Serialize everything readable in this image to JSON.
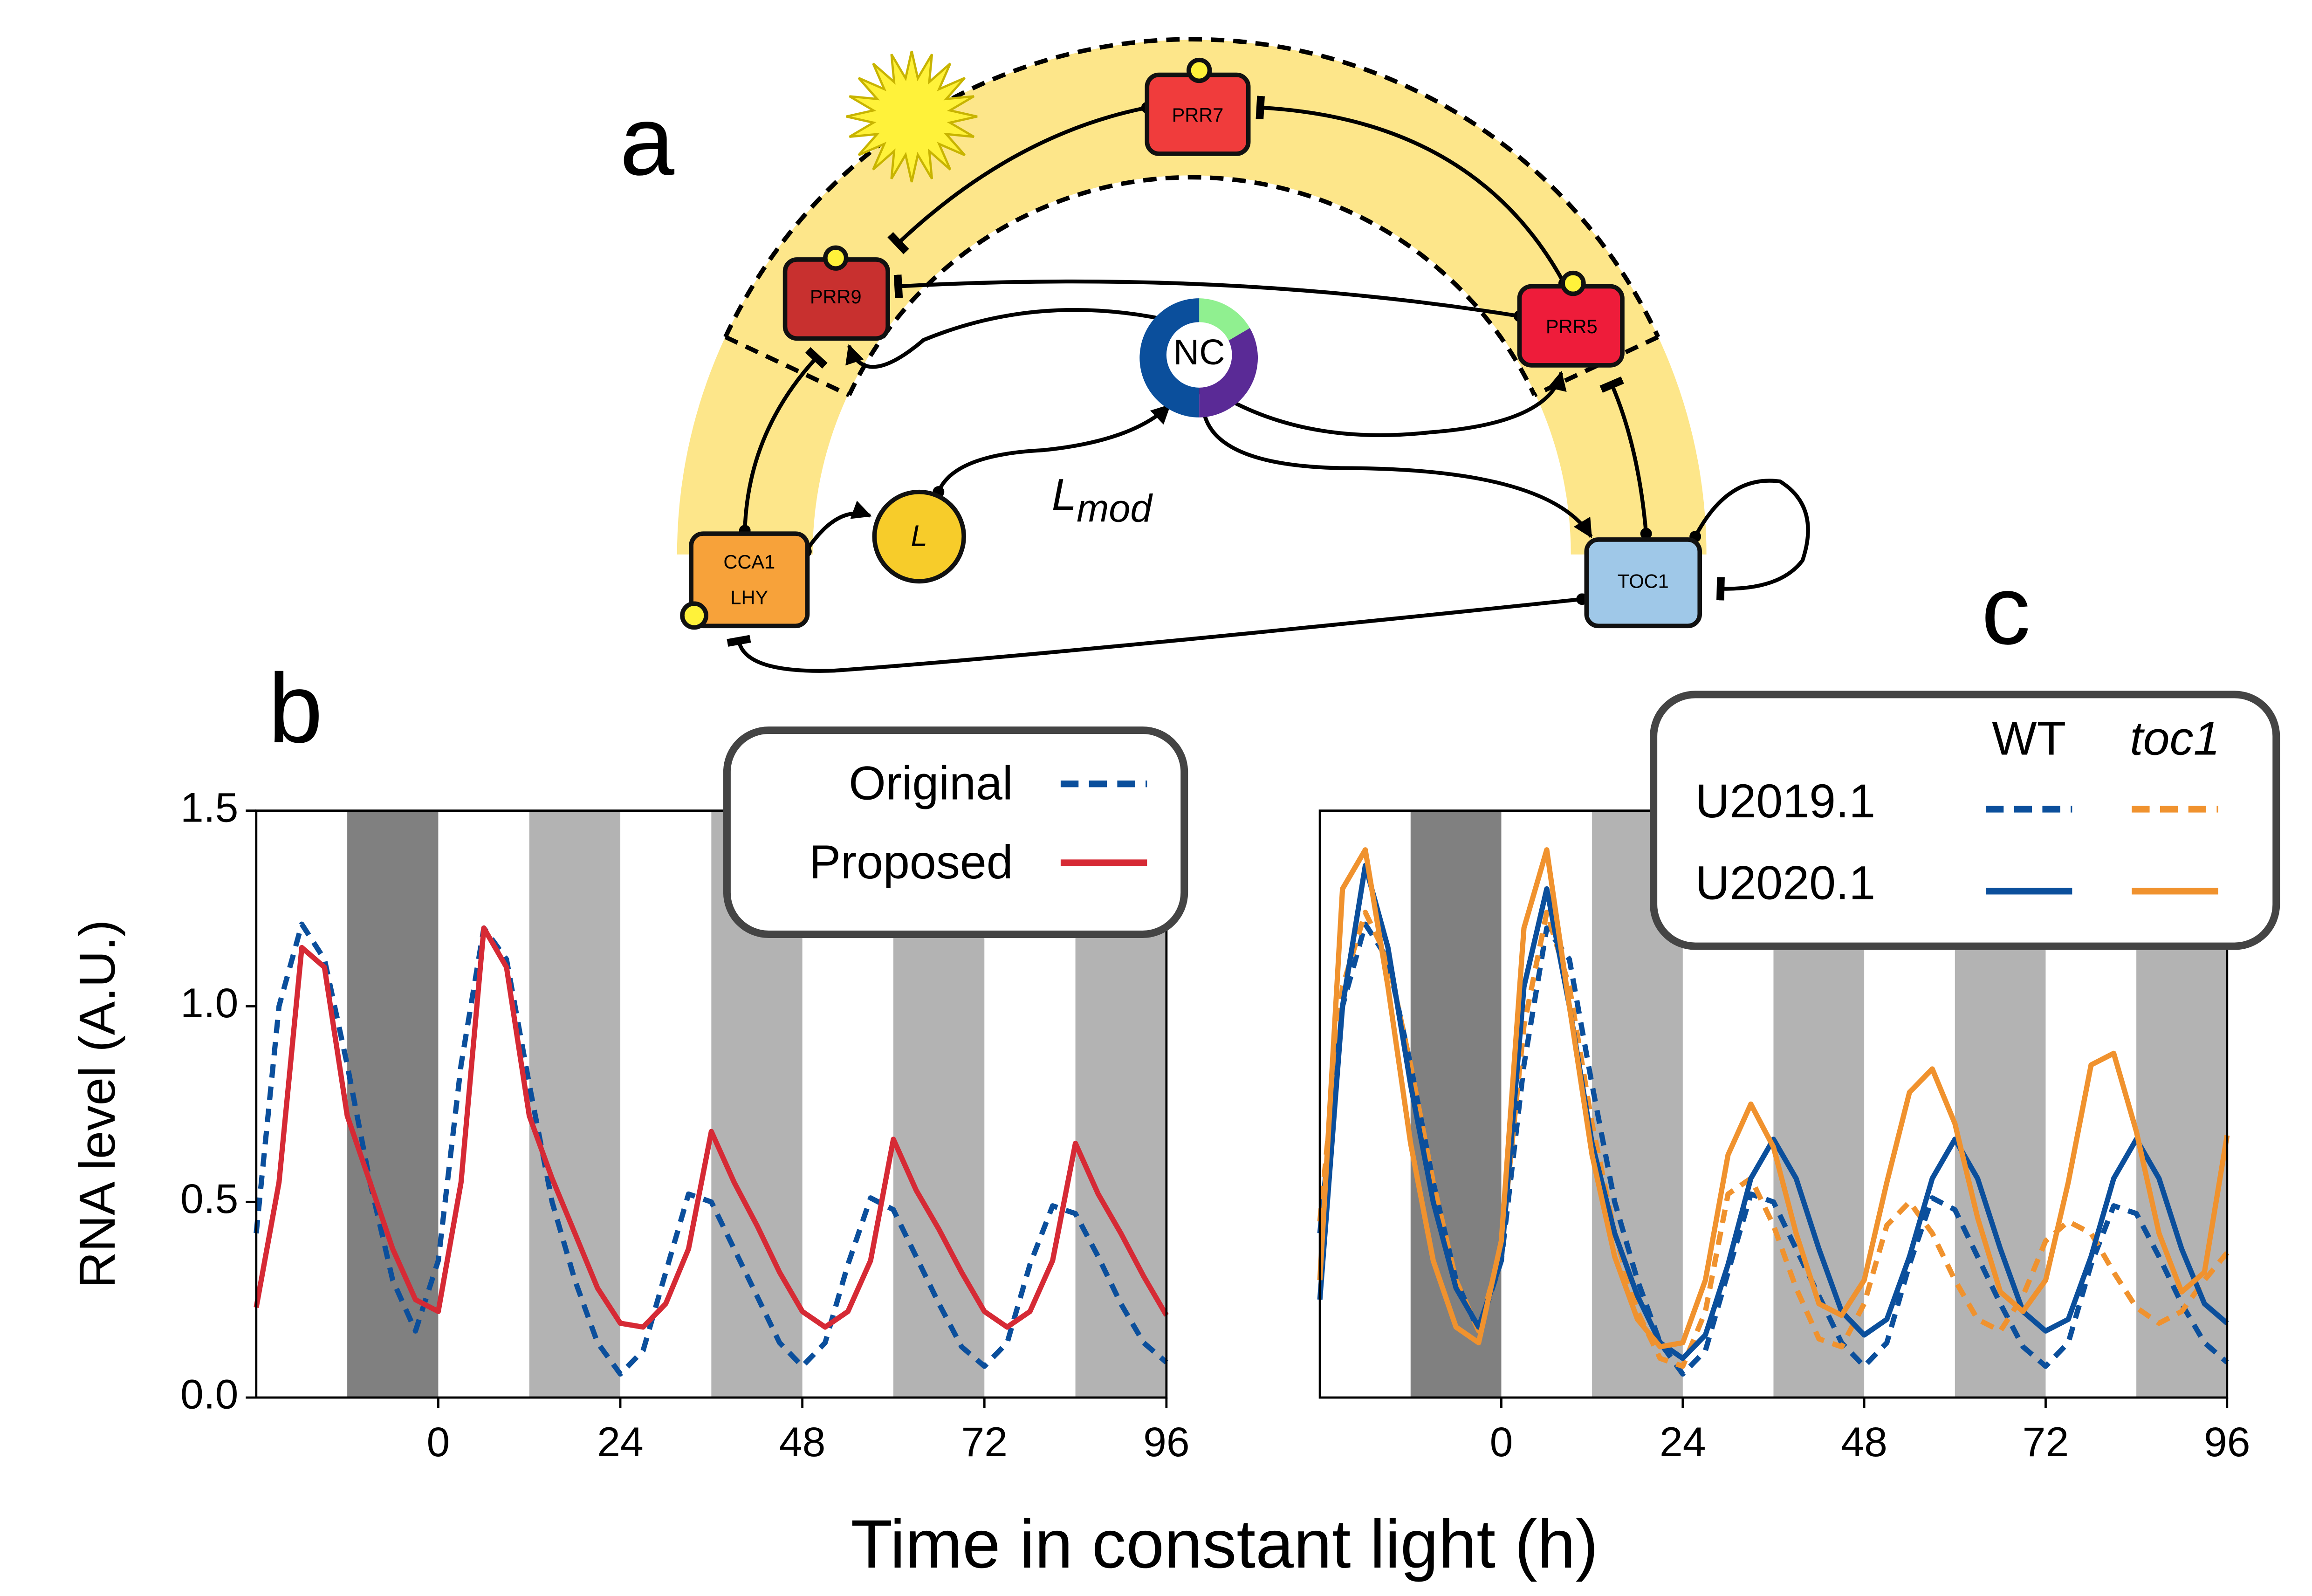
{
  "diagram": {
    "panel": "a",
    "nodes": [
      {
        "label": "PRR7"
      },
      {
        "label": "PRR9"
      },
      {
        "label": "PRR5"
      },
      {
        "label": "NC"
      },
      {
        "label": [
          "CCA1",
          "LHY"
        ]
      },
      {
        "label": "L"
      },
      {
        "label": "TOC1"
      }
    ],
    "edge_label": {
      "main": "L",
      "sub": "mod"
    }
  },
  "shared": {
    "xlabel": "Time in constant light (h)",
    "ylabel": "RNA level (A.U.)"
  },
  "chart_data": [
    {
      "type": "line",
      "panel": "b",
      "x": [
        -24,
        -21,
        -18,
        -15,
        -12,
        -9,
        -6,
        -3,
        0,
        3,
        6,
        9,
        12,
        15,
        18,
        21,
        24,
        27,
        30,
        33,
        36,
        39,
        42,
        45,
        48,
        51,
        54,
        57,
        60,
        63,
        66,
        69,
        72,
        75,
        78,
        81,
        84,
        87,
        90,
        93,
        96
      ],
      "xlim": [
        -24,
        96
      ],
      "xticks": [
        0,
        24,
        48,
        72,
        96
      ],
      "ylim": [
        0,
        1.5
      ],
      "yticks": [
        {
          "value": 0,
          "label": "0.0"
        },
        0.5,
        {
          "value": 1,
          "label": "1.0"
        },
        1.5
      ],
      "dark_intervals": [
        [
          -12,
          0
        ]
      ],
      "light_gray_intervals": [
        [
          12,
          24
        ],
        [
          36,
          48
        ],
        [
          60,
          72
        ],
        [
          84,
          96
        ]
      ],
      "legend": "upper right",
      "series": [
        {
          "name": "Original",
          "color": "#0b4f9c",
          "dashed": true,
          "values": [
            0.42,
            1.0,
            1.21,
            1.12,
            0.85,
            0.55,
            0.3,
            0.17,
            0.35,
            0.85,
            1.2,
            1.12,
            0.8,
            0.5,
            0.3,
            0.14,
            0.06,
            0.12,
            0.32,
            0.52,
            0.5,
            0.38,
            0.26,
            0.14,
            0.08,
            0.14,
            0.34,
            0.51,
            0.48,
            0.36,
            0.24,
            0.13,
            0.08,
            0.14,
            0.34,
            0.49,
            0.47,
            0.36,
            0.24,
            0.14,
            0.09
          ]
        },
        {
          "name": "Proposed",
          "color": "#d62a35",
          "dashed": false,
          "values": [
            0.23,
            0.55,
            1.15,
            1.1,
            0.72,
            0.55,
            0.38,
            0.25,
            0.22,
            0.55,
            1.2,
            1.1,
            0.72,
            0.56,
            0.42,
            0.28,
            0.19,
            0.18,
            0.24,
            0.38,
            0.68,
            0.55,
            0.44,
            0.32,
            0.22,
            0.18,
            0.22,
            0.35,
            0.66,
            0.53,
            0.43,
            0.32,
            0.22,
            0.18,
            0.22,
            0.35,
            0.65,
            0.52,
            0.42,
            0.31,
            0.21
          ]
        }
      ]
    },
    {
      "type": "line",
      "panel": "c",
      "x": [
        -24,
        -21,
        -18,
        -15,
        -12,
        -9,
        -6,
        -3,
        0,
        3,
        6,
        9,
        12,
        15,
        18,
        21,
        24,
        27,
        30,
        33,
        36,
        39,
        42,
        45,
        48,
        51,
        54,
        57,
        60,
        63,
        66,
        69,
        72,
        75,
        78,
        81,
        84,
        87,
        90,
        93,
        96
      ],
      "xlim": [
        -24,
        96
      ],
      "xticks": [
        0,
        24,
        48,
        72,
        96
      ],
      "ylim": [
        0,
        1.5
      ],
      "dark_intervals": [
        [
          -12,
          0
        ]
      ],
      "light_gray_intervals": [
        [
          12,
          24
        ],
        [
          36,
          48
        ],
        [
          60,
          72
        ],
        [
          84,
          96
        ]
      ],
      "legend": "upper right",
      "legend_rows": [
        "U2019.1",
        "U2020.1"
      ],
      "legend_columns": [
        "WT",
        "toc1"
      ],
      "series": [
        {
          "row": 0,
          "column": 0,
          "color": "#0b4f9c",
          "dashed": true,
          "values": [
            0.42,
            1.0,
            1.21,
            1.12,
            0.85,
            0.55,
            0.3,
            0.17,
            0.35,
            0.85,
            1.2,
            1.12,
            0.8,
            0.5,
            0.3,
            0.14,
            0.06,
            0.12,
            0.32,
            0.52,
            0.5,
            0.38,
            0.26,
            0.14,
            0.08,
            0.14,
            0.34,
            0.51,
            0.48,
            0.36,
            0.24,
            0.13,
            0.08,
            0.14,
            0.34,
            0.49,
            0.47,
            0.36,
            0.24,
            0.14,
            0.09
          ]
        },
        {
          "row": 0,
          "column": 1,
          "color": "#f0922e",
          "dashed": true,
          "values": [
            0.45,
            1.05,
            1.24,
            1.12,
            0.85,
            0.55,
            0.3,
            0.17,
            0.38,
            0.95,
            1.24,
            1.05,
            0.7,
            0.42,
            0.22,
            0.1,
            0.08,
            0.22,
            0.52,
            0.56,
            0.44,
            0.28,
            0.15,
            0.13,
            0.24,
            0.44,
            0.5,
            0.42,
            0.3,
            0.2,
            0.17,
            0.26,
            0.4,
            0.45,
            0.42,
            0.32,
            0.23,
            0.19,
            0.22,
            0.3,
            0.37
          ]
        },
        {
          "row": 1,
          "column": 0,
          "color": "#0b4f9c",
          "dashed": false,
          "values": [
            0.25,
            1.0,
            1.36,
            1.15,
            0.8,
            0.5,
            0.28,
            0.18,
            0.35,
            1.05,
            1.3,
            1.0,
            0.65,
            0.42,
            0.26,
            0.14,
            0.1,
            0.16,
            0.34,
            0.56,
            0.66,
            0.56,
            0.38,
            0.22,
            0.16,
            0.2,
            0.36,
            0.56,
            0.66,
            0.56,
            0.38,
            0.22,
            0.17,
            0.2,
            0.36,
            0.56,
            0.66,
            0.56,
            0.38,
            0.24,
            0.19
          ]
        },
        {
          "row": 1,
          "column": 1,
          "color": "#f0922e",
          "dashed": false,
          "values": [
            0.3,
            1.3,
            1.4,
            1.05,
            0.65,
            0.35,
            0.18,
            0.14,
            0.4,
            1.2,
            1.4,
            1.0,
            0.62,
            0.36,
            0.2,
            0.13,
            0.14,
            0.3,
            0.62,
            0.75,
            0.64,
            0.42,
            0.24,
            0.21,
            0.3,
            0.55,
            0.78,
            0.84,
            0.7,
            0.46,
            0.27,
            0.22,
            0.3,
            0.55,
            0.85,
            0.88,
            0.68,
            0.42,
            0.27,
            0.32,
            0.67
          ]
        }
      ]
    }
  ]
}
